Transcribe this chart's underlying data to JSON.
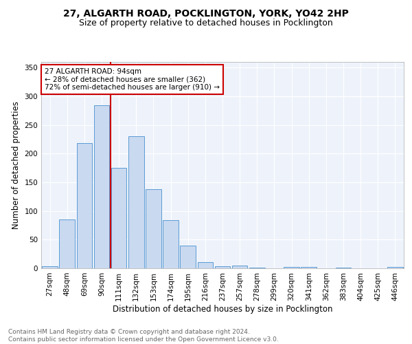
{
  "title1": "27, ALGARTH ROAD, POCKLINGTON, YORK, YO42 2HP",
  "title2": "Size of property relative to detached houses in Pocklington",
  "xlabel": "Distribution of detached houses by size in Pocklington",
  "ylabel": "Number of detached properties",
  "categories": [
    "27sqm",
    "48sqm",
    "69sqm",
    "90sqm",
    "111sqm",
    "132sqm",
    "153sqm",
    "174sqm",
    "195sqm",
    "216sqm",
    "237sqm",
    "257sqm",
    "278sqm",
    "299sqm",
    "320sqm",
    "341sqm",
    "362sqm",
    "383sqm",
    "404sqm",
    "425sqm",
    "446sqm"
  ],
  "values": [
    4,
    85,
    218,
    284,
    175,
    231,
    138,
    84,
    40,
    11,
    4,
    5,
    1,
    0,
    3,
    3,
    0,
    1,
    0,
    0,
    3
  ],
  "bar_color": "#c9d9f0",
  "bar_edge_color": "#5b9bd5",
  "vline_x": 3.5,
  "vline_color": "#cc0000",
  "annotation_text": "27 ALGARTH ROAD: 94sqm\n← 28% of detached houses are smaller (362)\n72% of semi-detached houses are larger (910) →",
  "annotation_box_color": "white",
  "annotation_box_edge": "#cc0000",
  "ylim": [
    0,
    360
  ],
  "yticks": [
    0,
    50,
    100,
    150,
    200,
    250,
    300,
    350
  ],
  "footnote": "Contains HM Land Registry data © Crown copyright and database right 2024.\nContains public sector information licensed under the Open Government Licence v3.0.",
  "background_color": "#eef3fb",
  "grid_color": "white",
  "title1_fontsize": 10,
  "title2_fontsize": 9,
  "xlabel_fontsize": 8.5,
  "ylabel_fontsize": 8.5,
  "tick_fontsize": 7.5,
  "annotation_fontsize": 7.5,
  "footnote_fontsize": 6.5
}
